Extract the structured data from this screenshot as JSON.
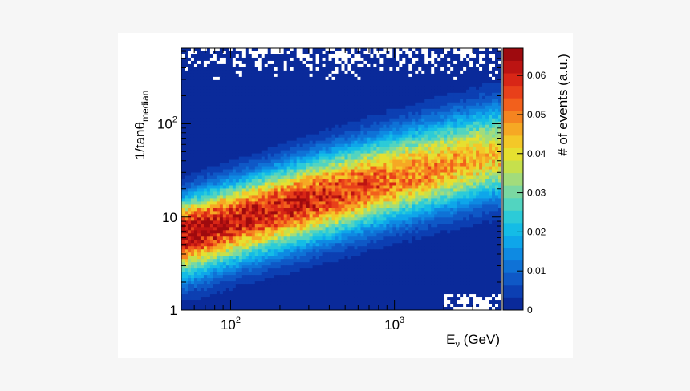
{
  "chart_data": {
    "type": "heatmap",
    "title": "",
    "xlabel": {
      "main": "E",
      "sub": "ν",
      "rest": " (GeV)"
    },
    "ylabel": {
      "main": "1/tanθ",
      "sub": "median"
    },
    "xscale": "log",
    "yscale": "log",
    "xlim": [
      50,
      4500
    ],
    "ylim": [
      1,
      650
    ],
    "x_ticks": [
      {
        "value": 100,
        "base": "10",
        "exp": "2"
      },
      {
        "value": 1000,
        "base": "10",
        "exp": "3"
      }
    ],
    "y_ticks": [
      {
        "value": 1,
        "label": "1"
      },
      {
        "value": 10,
        "label": "10"
      },
      {
        "value": 100,
        "base": "10",
        "exp": "2"
      }
    ],
    "colorbar": {
      "label": "# of events (a.u.)",
      "range": [
        0,
        0.067
      ],
      "ticks": [
        "0",
        "0.01",
        "0.02",
        "0.03",
        "0.04",
        "0.05",
        "0.06"
      ],
      "tick_values": [
        0,
        0.01,
        0.02,
        0.03,
        0.04,
        0.05,
        0.06
      ]
    },
    "palette": [
      "#0a2a9a",
      "#0c3fb2",
      "#0f58c6",
      "#0f72d6",
      "#0e8ae2",
      "#0ea6ea",
      "#14bce6",
      "#2ccbd8",
      "#52d4c0",
      "#7ad8a2",
      "#a2dc7c",
      "#c6e04c",
      "#e6e030",
      "#f4c828",
      "#f6a824",
      "#f58420",
      "#f2601c",
      "#e8401a",
      "#d82616",
      "#bc1412",
      "#9e0a0e"
    ],
    "ridge": {
      "description_points": [
        {
          "x": 50,
          "y": 6.5,
          "value": 0.066
        },
        {
          "x": 100,
          "y": 9,
          "value": 0.062
        },
        {
          "x": 300,
          "y": 15,
          "value": 0.06
        },
        {
          "x": 1000,
          "y": 26,
          "value": 0.052
        },
        {
          "x": 4000,
          "y": 45,
          "value": 0.044
        }
      ]
    }
  }
}
